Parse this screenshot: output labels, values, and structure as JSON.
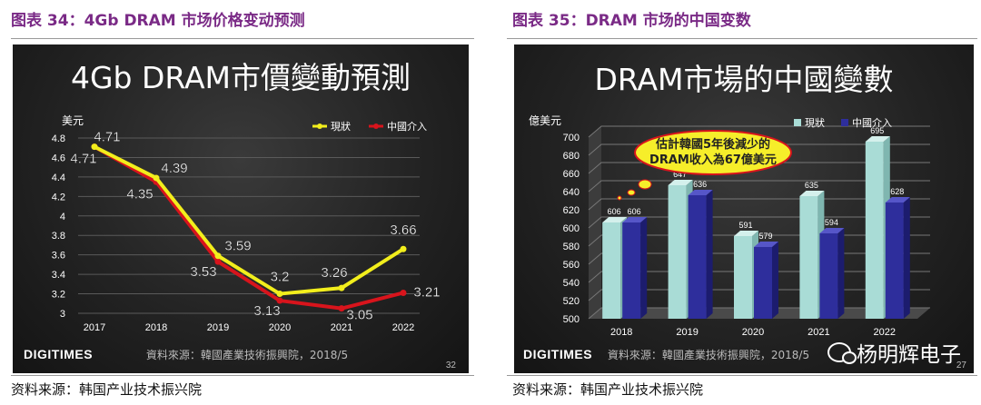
{
  "left": {
    "fig_title": "图表 34：4Gb DRAM 市场价格变动预测",
    "source_note": "资料来源：韩国产业技术振兴院",
    "slide_source": "資料來源：韓國產業技術振興院，2018/5",
    "page_number": "32",
    "logo": "DIGITIMES"
  },
  "right": {
    "fig_title": "图表 35：DRAM 市场的中国变数",
    "source_note": "资料来源：韩国产业技术振兴院",
    "slide_source": "資料來源：韓國產業技術振興院，2018/5",
    "page_number": "27",
    "logo": "DIGITIMES",
    "bubble_line1": "估計韓國5年後減少的",
    "bubble_line2": "DRAM收入為67億美元",
    "watermark": "杨明辉电子"
  },
  "colors": {
    "title": "#7a2a86",
    "line_yellow": "#f2ee1c",
    "line_red": "#d8141c",
    "bar_light": "#a9dcd6",
    "bar_dark": "#2e2e9c"
  },
  "chart_data": [
    {
      "type": "line",
      "title": "4Gb DRAM市價變動預測",
      "ylabel": "美元",
      "xlabel": "",
      "x": [
        "2017",
        "2018",
        "2019",
        "2020",
        "2021",
        "2022"
      ],
      "ylim": [
        3,
        4.8
      ],
      "yticks": [
        "4.8",
        "4.6",
        "4.4",
        "4.2",
        "4",
        "3.8",
        "3.6",
        "3.4",
        "3.2",
        "3"
      ],
      "grid": true,
      "legend_position": "top-right",
      "series": [
        {
          "name": "現狀",
          "color": "#f2ee1c",
          "values": [
            4.71,
            4.39,
            3.59,
            3.2,
            3.26,
            3.66
          ],
          "labels": [
            "4.71",
            "4.39",
            "3.59",
            "3.2",
            "3.26",
            "3.66"
          ]
        },
        {
          "name": "中國介入",
          "color": "#d8141c",
          "values": [
            4.71,
            4.35,
            3.53,
            3.13,
            3.05,
            3.21
          ],
          "labels": [
            "4.71",
            "4.35",
            "3.53",
            "3.13",
            "3.05",
            "3.21"
          ]
        }
      ]
    },
    {
      "type": "bar",
      "title": "DRAM市場的中國變數",
      "ylabel": "億美元",
      "xlabel": "",
      "categories": [
        "2018",
        "2019",
        "2020",
        "2021",
        "2022"
      ],
      "ylim": [
        500,
        700
      ],
      "yticks": [
        "700",
        "680",
        "660",
        "640",
        "620",
        "600",
        "580",
        "560",
        "540",
        "520",
        "500"
      ],
      "grid": true,
      "legend_position": "top-right",
      "series": [
        {
          "name": "現狀",
          "color": "#a9dcd6",
          "values": [
            606,
            647,
            591,
            635,
            695
          ],
          "labels": [
            "606",
            "647",
            "591",
            "635",
            "695"
          ]
        },
        {
          "name": "中國介入",
          "color": "#2e2e9c",
          "values": [
            606,
            636,
            579,
            594,
            628
          ],
          "labels": [
            "606",
            "636",
            "579",
            "594",
            "628"
          ]
        }
      ]
    }
  ]
}
